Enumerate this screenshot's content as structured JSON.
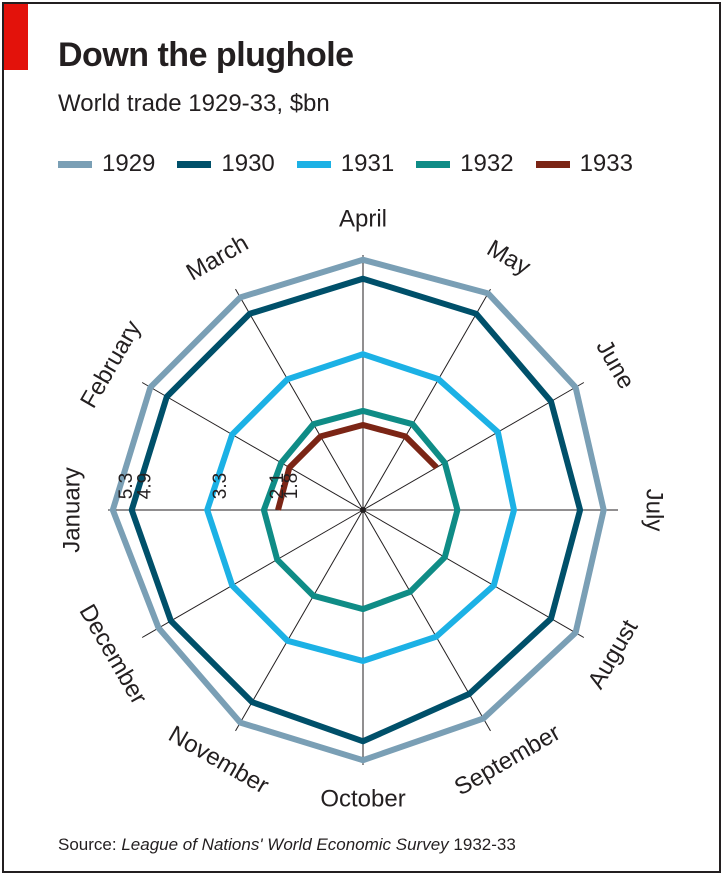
{
  "header": {
    "title": "Down the plughole",
    "subtitle": "World trade 1929-33, $bn"
  },
  "source": {
    "prefix": "Source:",
    "publication": "League of Nations' World Economic Survey",
    "suffix": "1932-33"
  },
  "colors": {
    "accent": "#e3120b",
    "axis": "#231f20"
  },
  "chart_data": {
    "type": "radar",
    "title": "Down the plughole",
    "subtitle": "World trade 1929-33, $bn",
    "categories": [
      "April",
      "May",
      "June",
      "July",
      "August",
      "September",
      "October",
      "November",
      "December",
      "January",
      "February",
      "March"
    ],
    "radial_tick_labels": [
      "5.3",
      "4.9",
      "3.3",
      "2.1",
      "1.8"
    ],
    "grid": false,
    "legend_position": "top",
    "series": [
      {
        "name": "1929",
        "color": "#7a9fb5",
        "values": [
          5.3,
          5.3,
          5.2,
          5.1,
          5.2,
          5.1,
          5.3,
          5.2,
          5.0,
          5.3,
          5.2,
          5.2
        ]
      },
      {
        "name": "1930",
        "color": "#00506a",
        "values": [
          4.9,
          4.8,
          4.6,
          4.6,
          4.6,
          4.5,
          4.9,
          4.7,
          4.7,
          4.9,
          4.8,
          4.8
        ]
      },
      {
        "name": "1931",
        "color": "#1cb1e5",
        "values": [
          3.3,
          3.2,
          3.3,
          3.2,
          3.2,
          3.1,
          3.2,
          3.2,
          3.2,
          3.3,
          3.2,
          3.2
        ]
      },
      {
        "name": "1932",
        "color": "#0f8c86",
        "values": [
          2.1,
          2.1,
          2.0,
          2.0,
          2.0,
          2.0,
          2.1,
          2.1,
          2.1,
          2.1,
          2.0,
          2.1
        ]
      },
      {
        "name": "1933",
        "color": "#7b2515",
        "values": [
          1.8,
          1.8,
          1.8,
          null,
          null,
          null,
          null,
          null,
          null,
          1.8,
          1.8,
          1.8
        ]
      }
    ]
  }
}
